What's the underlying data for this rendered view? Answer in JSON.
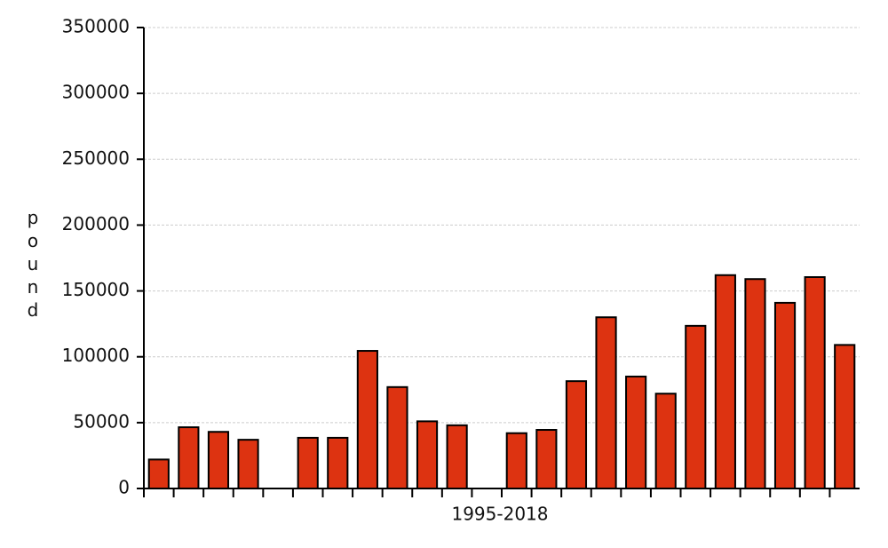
{
  "chart_data": {
    "type": "bar",
    "x_label": "1995-2018",
    "y_label": "pound",
    "categories": [
      null,
      null,
      null,
      null,
      null,
      null,
      null,
      null,
      null,
      null,
      null,
      null,
      null,
      null,
      null,
      null,
      null,
      null,
      null,
      null,
      null,
      null,
      null,
      null
    ],
    "values": [
      22000,
      46500,
      43000,
      37000,
      0,
      38500,
      38500,
      104500,
      77000,
      51000,
      48000,
      0,
      42000,
      44500,
      81500,
      130000,
      85000,
      72000,
      123500,
      162000,
      159000,
      141000,
      160500,
      109000
    ],
    "color": "#dd3311",
    "ylim": [
      0,
      350000
    ],
    "yticks": [
      0,
      50000,
      100000,
      150000,
      200000,
      250000,
      300000,
      350000
    ],
    "grid": true
  }
}
